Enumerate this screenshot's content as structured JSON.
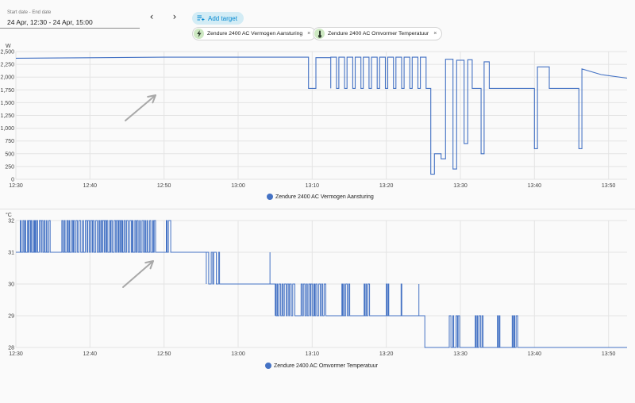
{
  "date_range": {
    "label": "Start date - End date",
    "value": "24 Apr, 12:30 - 24 Apr, 15:00"
  },
  "nav": {
    "prev": "‹",
    "next": "›"
  },
  "add_target": {
    "label": "Add target"
  },
  "chips": [
    {
      "label": "Zendure 2400 AC Vermogen Aansturing",
      "icon": "lightning-icon",
      "close": "×"
    },
    {
      "label": "Zendure 2400 AC Omvormer Temperatuur",
      "icon": "thermometer-icon",
      "close": "×"
    }
  ],
  "colors": {
    "line": "#4472c4",
    "grid": "#e4e4e4",
    "accent": "#0288d1",
    "arrow": "#a8a8a8"
  },
  "chart_data": [
    {
      "type": "line",
      "unit": "W",
      "legend": "Zendure 2400 AC Vermogen Aansturing",
      "ylim": [
        0,
        2500
      ],
      "yticks": [
        "0",
        "250",
        "500",
        "750",
        "1,000",
        "1,250",
        "1,500",
        "1,750",
        "2,000",
        "2,250",
        "2,500"
      ],
      "xticks": [
        "12:30",
        "12:40",
        "12:50",
        "13:00",
        "13:10",
        "13:20",
        "13:30",
        "13:40",
        "13:50"
      ],
      "x_range_min": [
        0,
        82.5
      ],
      "series": [
        {
          "points": [
            [
              0,
              2370
            ],
            [
              20,
              2390
            ],
            [
              39.5,
              2390
            ],
            [
              39.5,
              1780
            ],
            [
              40.5,
              1780
            ],
            [
              40.5,
              2380
            ],
            [
              42.5,
              2380
            ],
            [
              42.5,
              1780
            ],
            [
              56,
              1780
            ],
            [
              56,
              100
            ],
            [
              56.5,
              100
            ],
            [
              56.5,
              500
            ],
            [
              57.4,
              500
            ],
            [
              57.4,
              400
            ],
            [
              58,
              400
            ],
            [
              58,
              2350
            ],
            [
              59,
              2350
            ],
            [
              59,
              200
            ],
            [
              59.5,
              200
            ],
            [
              59.5,
              2330
            ],
            [
              60.5,
              2330
            ],
            [
              60.5,
              700
            ],
            [
              61,
              700
            ],
            [
              61,
              2340
            ],
            [
              61.6,
              2340
            ],
            [
              61.6,
              1780
            ],
            [
              62.8,
              1780
            ],
            [
              62.8,
              500
            ],
            [
              63.2,
              500
            ],
            [
              63.2,
              2300
            ],
            [
              63.9,
              2300
            ],
            [
              63.9,
              1780
            ],
            [
              70,
              1780
            ],
            [
              70,
              600
            ],
            [
              70.4,
              600
            ],
            [
              70.4,
              2200
            ],
            [
              72,
              2200
            ],
            [
              72,
              1780
            ],
            [
              76,
              1780
            ],
            [
              76,
              600
            ],
            [
              76.4,
              600
            ],
            [
              76.4,
              2160
            ],
            [
              79,
              2050
            ],
            [
              82.5,
              1980
            ]
          ],
          "square_wave": {
            "from": 42.5,
            "to": 56,
            "period": 1.1,
            "high": 2390,
            "low": 1780
          }
        }
      ]
    },
    {
      "type": "line",
      "unit": "°C",
      "legend": "Zendure 2400 AC Omvormer Temperatuur",
      "ylim": [
        28,
        32
      ],
      "yticks": [
        "28",
        "29",
        "30",
        "31",
        "32"
      ],
      "xticks": [
        "12:30",
        "12:40",
        "12:50",
        "13:00",
        "13:10",
        "13:20",
        "13:30",
        "13:40",
        "13:50"
      ],
      "x_range_min": [
        0,
        82.5
      ],
      "series": [
        {
          "segments": [
            {
              "from": 0,
              "to": 19,
              "base": 31,
              "toggle": 32,
              "bursts": [
                [
                  0.6,
                  4.5
                ],
                [
                  6.2,
                  19
                ]
              ]
            },
            {
              "from": 19,
              "to": 25.7,
              "base": 31,
              "toggle": 32,
              "bursts": [
                [
                  20.3,
                  20.6
                ]
              ]
            },
            {
              "from": 25.7,
              "to": 35,
              "base": 30,
              "toggle": 31,
              "bursts": [
                [
                  25.7,
                  27.5
                ]
              ]
            },
            {
              "from": 35,
              "to": 55.2,
              "base": 29,
              "toggle": 30,
              "bursts": [
                [
                  35,
                  37.5
                ],
                [
                  38.5,
                  42
                ],
                [
                  44,
                  45
                ],
                [
                  47,
                  47.6
                ],
                [
                  50,
                  50.3
                ],
                [
                  52,
                  52.2
                ]
              ]
            },
            {
              "from": 55.2,
              "to": 82.5,
              "base": 28,
              "toggle": 29,
              "bursts": [
                [
                  58.5,
                  60
                ],
                [
                  62,
                  63
                ],
                [
                  65,
                  65.5
                ],
                [
                  67,
                  67.6
                ]
              ]
            }
          ],
          "drops": [
            [
              34.3,
              31,
              30
            ],
            [
              54.4,
              30,
              29
            ]
          ]
        }
      ]
    }
  ]
}
